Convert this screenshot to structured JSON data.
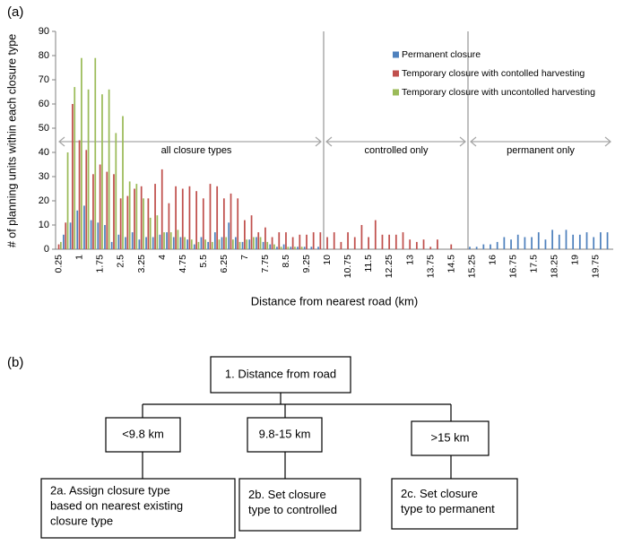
{
  "chart_data": {
    "type": "bar",
    "panel_label": "(a)",
    "xlabel": "Distance from nearest road (km)",
    "ylabel": "# of planning units within each closure type",
    "categories": [
      "0.25",
      null,
      null,
      "1",
      null,
      null,
      "1.75",
      null,
      null,
      "2.5",
      null,
      null,
      "3.25",
      null,
      null,
      "4",
      null,
      null,
      "4.75",
      null,
      null,
      "5.5",
      null,
      null,
      "6.25",
      null,
      null,
      "7",
      null,
      null,
      "7.75",
      null,
      null,
      "8.5",
      null,
      null,
      "9.25",
      null,
      null,
      "10",
      null,
      null,
      "10.75",
      null,
      null,
      "11.5",
      null,
      null,
      "12.25",
      null,
      null,
      "13",
      null,
      null,
      "13.75",
      null,
      null,
      "14.5",
      null,
      null,
      "15.25",
      null,
      null,
      "16",
      null,
      null,
      "16.75",
      null,
      null,
      "17.5",
      null,
      null,
      "18.25",
      null,
      null,
      "19",
      null,
      null,
      "19.75",
      null,
      null
    ],
    "series": [
      {
        "name": "Permanent closure",
        "color": "#4f81bd",
        "values": [
          0,
          6,
          11,
          16,
          18,
          12,
          11,
          10,
          3,
          6,
          5,
          7,
          4,
          5,
          5,
          6,
          7,
          5,
          5,
          4,
          2,
          5,
          3,
          7,
          5,
          11,
          5,
          3,
          4,
          5,
          3,
          2,
          1,
          2,
          1,
          1,
          1,
          1,
          1,
          0,
          0,
          0,
          0,
          0,
          0,
          0,
          0,
          0,
          0,
          0,
          0,
          0,
          0,
          0,
          0,
          0,
          0,
          0,
          0,
          0,
          1,
          1,
          2,
          2,
          3,
          5,
          4,
          6,
          5,
          5,
          7,
          4,
          8,
          6,
          8,
          6,
          6,
          7,
          5,
          7,
          7
        ]
      },
      {
        "name": "Temporary closure with contolled harvesting",
        "color": "#c0504d",
        "values": [
          2,
          11,
          60,
          45,
          41,
          31,
          35,
          32,
          31,
          21,
          22,
          25,
          26,
          21,
          27,
          33,
          19,
          26,
          25,
          26,
          24,
          21,
          27,
          26,
          21,
          23,
          21,
          12,
          14,
          7,
          9,
          5,
          7,
          7,
          5,
          6,
          6,
          7,
          7,
          5,
          7,
          3,
          7,
          5,
          10,
          5,
          12,
          6,
          6,
          6,
          7,
          4,
          3,
          4,
          1,
          4,
          0,
          2,
          0,
          0,
          0,
          0,
          0,
          0,
          0,
          0,
          0,
          0,
          0,
          0,
          0,
          0,
          0,
          0,
          0,
          0,
          0,
          0,
          0,
          0,
          0
        ]
      },
      {
        "name": "Temporary closure with uncontolled harvesting",
        "color": "#9bbb59",
        "values": [
          3,
          40,
          67,
          79,
          66,
          79,
          64,
          66,
          48,
          55,
          28,
          27,
          21,
          13,
          14,
          7,
          7,
          8,
          5,
          4,
          3,
          4,
          3,
          4,
          5,
          4,
          3,
          4,
          5,
          5,
          3,
          2,
          1,
          1,
          1,
          1,
          0,
          0,
          0,
          0,
          0,
          0,
          0,
          0,
          0,
          0,
          0,
          0,
          0,
          0,
          0,
          0,
          0,
          0,
          0,
          0,
          0,
          0,
          0,
          0,
          0,
          0,
          0,
          0,
          0,
          0,
          0,
          0,
          0,
          0,
          0,
          0,
          0,
          0,
          0,
          0,
          0,
          0,
          0,
          0,
          0
        ]
      }
    ],
    "ylim": [
      0,
      90
    ],
    "yticks": [
      0,
      10,
      20,
      30,
      40,
      50,
      60,
      70,
      80,
      90
    ],
    "grid": false,
    "legend": "upper right",
    "annotations": [
      "all closure types",
      "controlled only",
      "permanent only"
    ]
  },
  "diagram": {
    "panel_label": "(b)",
    "nodes": [
      {
        "lines": [
          "1. Distance from road"
        ]
      },
      {
        "lines": [
          "<9.8 km"
        ]
      },
      {
        "lines": [
          "9.8-15 km"
        ]
      },
      {
        "lines": [
          ">15 km"
        ]
      },
      {
        "lines": [
          "2a. Assign closure type",
          "based on nearest existing",
          "closure type"
        ]
      },
      {
        "lines": [
          "2b. Set closure",
          "type to controlled"
        ]
      },
      {
        "lines": [
          "2c. Set closure",
          "type to permanent"
        ]
      }
    ]
  }
}
